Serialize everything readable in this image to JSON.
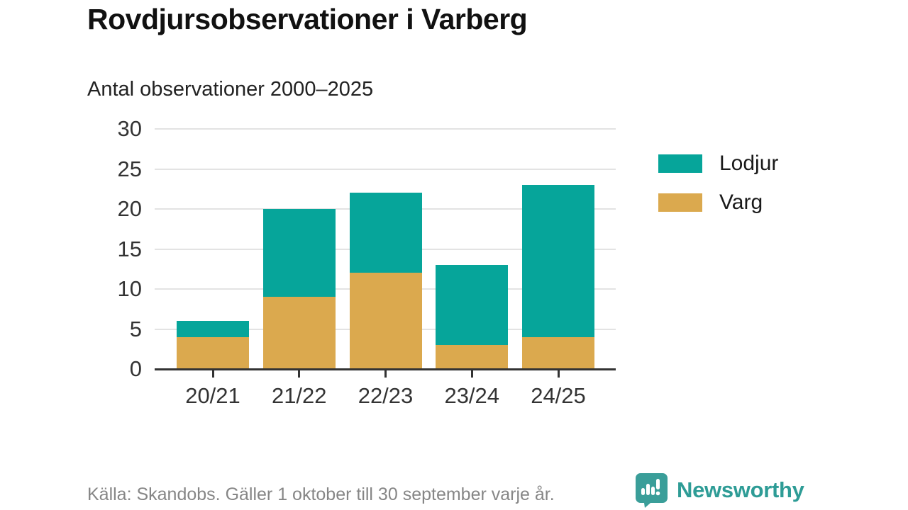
{
  "header": {
    "title": "Rovdjursobservationer i Varberg",
    "subtitle": "Antal observationer 2000–2025"
  },
  "chart_data": {
    "type": "bar",
    "stacked": true,
    "categories": [
      "20/21",
      "21/22",
      "22/23",
      "23/24",
      "24/25"
    ],
    "series": [
      {
        "name": "Varg",
        "color": "#DBA94E",
        "values": [
          4,
          9,
          12,
          3,
          4
        ]
      },
      {
        "name": "Lodjur",
        "color": "#06A59A",
        "values": [
          2,
          11,
          10,
          10,
          19
        ]
      }
    ],
    "totals": [
      6,
      20,
      22,
      13,
      23
    ],
    "title": "Rovdjursobservationer i Varberg",
    "subtitle": "Antal observationer 2000–2025",
    "xlabel": "",
    "ylabel": "",
    "ylim": [
      0,
      30
    ],
    "yticks": [
      0,
      5,
      10,
      15,
      20,
      25,
      30
    ],
    "grid": true,
    "legend_position": "right",
    "legend": [
      {
        "label": "Lodjur",
        "color": "#06A59A"
      },
      {
        "label": "Varg",
        "color": "#DBA94E"
      }
    ]
  },
  "footer": {
    "source": "Källa: Skandobs. Gäller 1 oktober till 30 september varje år.",
    "brand": "Newsworthy"
  },
  "colors": {
    "lodjur": "#06A59A",
    "varg": "#DBA94E",
    "brand_teal": "#2E9C96",
    "grid": "#E3E3E3",
    "axis": "#333333",
    "title_text": "#111111",
    "muted_text": "#868686"
  }
}
